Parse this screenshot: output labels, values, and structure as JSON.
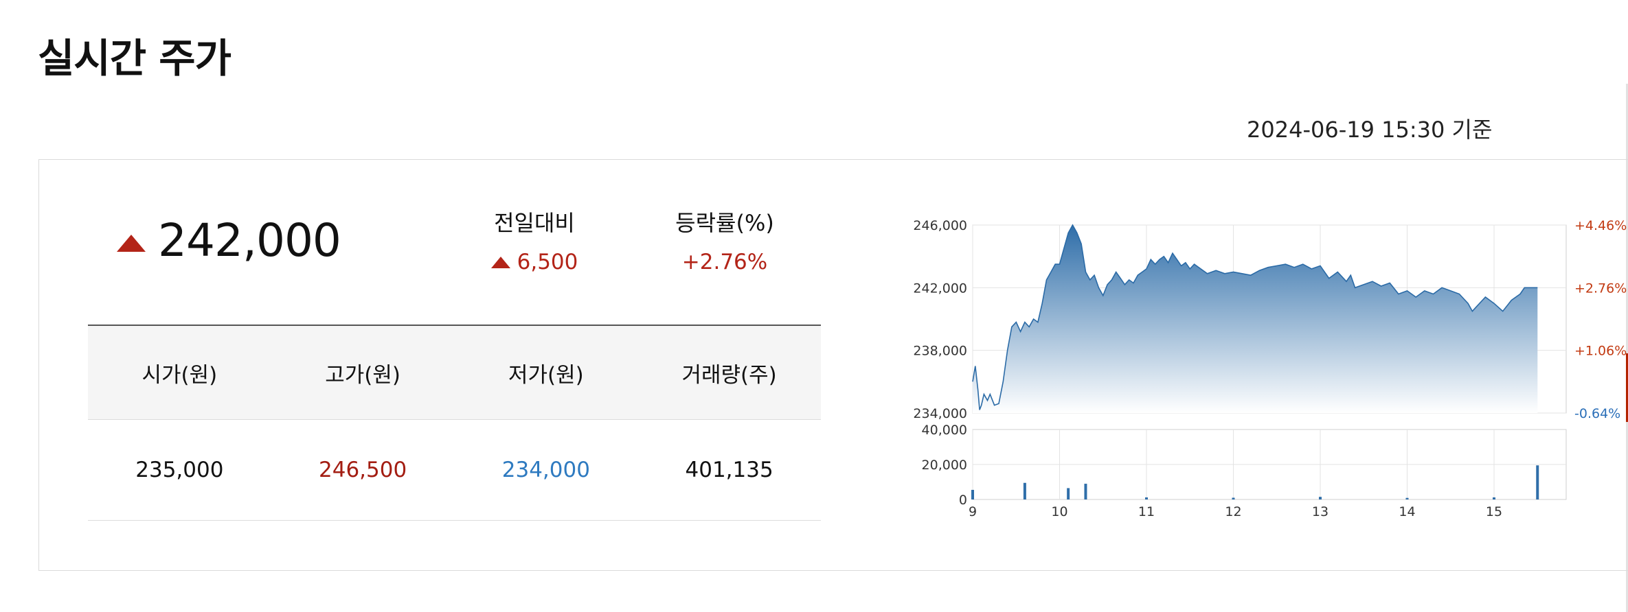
{
  "page": {
    "title": "실시간 주가",
    "timestamp": "2024-06-19 15:30 기준"
  },
  "quote": {
    "price": "242,000",
    "direction": "up",
    "change_label": "전일대비",
    "change_value": "6,500",
    "rate_label": "등락률(%)",
    "rate_value": "+2.76%"
  },
  "stats": {
    "headers": [
      "시가(원)",
      "고가(원)",
      "저가(원)",
      "거래량(주)"
    ],
    "values": [
      "235,000",
      "246,500",
      "234,000",
      "401,135"
    ]
  },
  "colors": {
    "up": "#b32418",
    "down": "#2e7ac0",
    "chart_fill": "#3a7bb6"
  },
  "chart_data": {
    "type": "area",
    "price_axis_labels": [
      "246,000",
      "242,000",
      "238,000",
      "234,000"
    ],
    "rate_axis_labels": [
      "+4.46%",
      "+2.76%",
      "+1.06%",
      "-0.64%"
    ],
    "volume_axis_labels": [
      "40,000",
      "20,000",
      "0"
    ],
    "x_tick_labels": [
      "9",
      "10",
      "11",
      "12",
      "13",
      "14",
      "15"
    ],
    "ylim": [
      234000,
      246000
    ],
    "volume_ylim": [
      0,
      40000
    ],
    "xlim": [
      9.0,
      15.83
    ],
    "price_series": {
      "x": [
        9.0,
        9.03,
        9.06,
        9.08,
        9.1,
        9.13,
        9.17,
        9.2,
        9.25,
        9.3,
        9.35,
        9.4,
        9.45,
        9.5,
        9.55,
        9.6,
        9.65,
        9.7,
        9.75,
        9.8,
        9.85,
        9.9,
        9.95,
        10.0,
        10.05,
        10.1,
        10.15,
        10.2,
        10.25,
        10.3,
        10.35,
        10.4,
        10.45,
        10.5,
        10.55,
        10.6,
        10.65,
        10.7,
        10.75,
        10.8,
        10.85,
        10.9,
        10.95,
        11.0,
        11.05,
        11.1,
        11.15,
        11.2,
        11.25,
        11.3,
        11.35,
        11.4,
        11.45,
        11.5,
        11.55,
        11.6,
        11.7,
        11.8,
        11.9,
        12.0,
        12.1,
        12.2,
        12.3,
        12.4,
        12.5,
        12.6,
        12.7,
        12.8,
        12.9,
        13.0,
        13.1,
        13.2,
        13.3,
        13.35,
        13.4,
        13.5,
        13.6,
        13.7,
        13.8,
        13.9,
        14.0,
        14.1,
        14.2,
        14.3,
        14.4,
        14.5,
        14.6,
        14.7,
        14.75,
        14.8,
        14.9,
        15.0,
        15.1,
        15.2,
        15.3,
        15.35,
        15.4,
        15.5
      ],
      "y": [
        236000,
        237000,
        235500,
        234200,
        234500,
        235200,
        234800,
        235200,
        234500,
        234600,
        236000,
        238000,
        239500,
        239800,
        239200,
        239800,
        239500,
        240000,
        239800,
        241000,
        242500,
        243000,
        243500,
        243500,
        244500,
        245500,
        246000,
        245500,
        244800,
        243000,
        242500,
        242800,
        242000,
        241500,
        242200,
        242500,
        243000,
        242600,
        242200,
        242500,
        242300,
        242800,
        243000,
        243200,
        243800,
        243500,
        243800,
        244000,
        243600,
        244200,
        243800,
        243400,
        243600,
        243200,
        243500,
        243300,
        242900,
        243100,
        242900,
        243000,
        242900,
        242800,
        243100,
        243300,
        243400,
        243500,
        243300,
        243500,
        243200,
        243400,
        242600,
        243000,
        242400,
        242800,
        242000,
        242200,
        242400,
        242100,
        242300,
        241600,
        241800,
        241400,
        241800,
        241600,
        242000,
        241800,
        241600,
        241000,
        240500,
        240800,
        241400,
        241000,
        240500,
        241200,
        241600,
        242000,
        242000,
        242000
      ]
    },
    "volume_series": {
      "x": [
        9.0,
        9.6,
        10.1,
        10.3,
        11.0,
        12.0,
        13.0,
        14.0,
        15.0,
        15.5
      ],
      "y": [
        5500,
        9500,
        6500,
        9000,
        1200,
        1000,
        1500,
        900,
        1200,
        19500
      ]
    }
  }
}
